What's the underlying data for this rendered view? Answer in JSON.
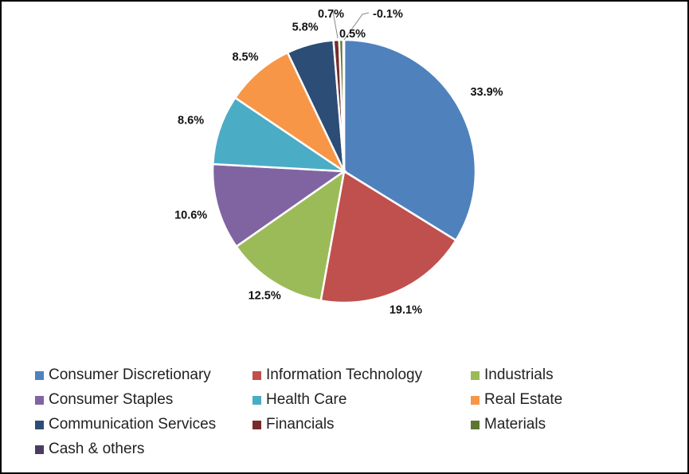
{
  "chart_data": {
    "type": "pie",
    "slices": [
      {
        "name": "Consumer Discretionary",
        "value": 33.9,
        "label": "33.9%",
        "color": "#4F81BD"
      },
      {
        "name": "Information Technology",
        "value": 19.1,
        "label": "19.1%",
        "color": "#C0504D"
      },
      {
        "name": "Industrials",
        "value": 12.5,
        "label": "12.5%",
        "color": "#9BBB59"
      },
      {
        "name": "Consumer Staples",
        "value": 10.6,
        "label": "10.6%",
        "color": "#8064A2"
      },
      {
        "name": "Health Care",
        "value": 8.6,
        "label": "8.6%",
        "color": "#4BACC6"
      },
      {
        "name": "Real Estate",
        "value": 8.5,
        "label": "8.5%",
        "color": "#F79646"
      },
      {
        "name": "Communication Services",
        "value": 5.8,
        "label": "5.8%",
        "color": "#2C4D75"
      },
      {
        "name": "Financials",
        "value": 0.7,
        "label": "0.7%",
        "color": "#772C2A"
      },
      {
        "name": "Materials",
        "value": 0.5,
        "label": "0.5%",
        "color": "#5F7530"
      },
      {
        "name": "Cash & others",
        "value": -0.1,
        "label": "-0.1%",
        "color": "#4D3B62"
      }
    ],
    "legend_position": "bottom"
  }
}
